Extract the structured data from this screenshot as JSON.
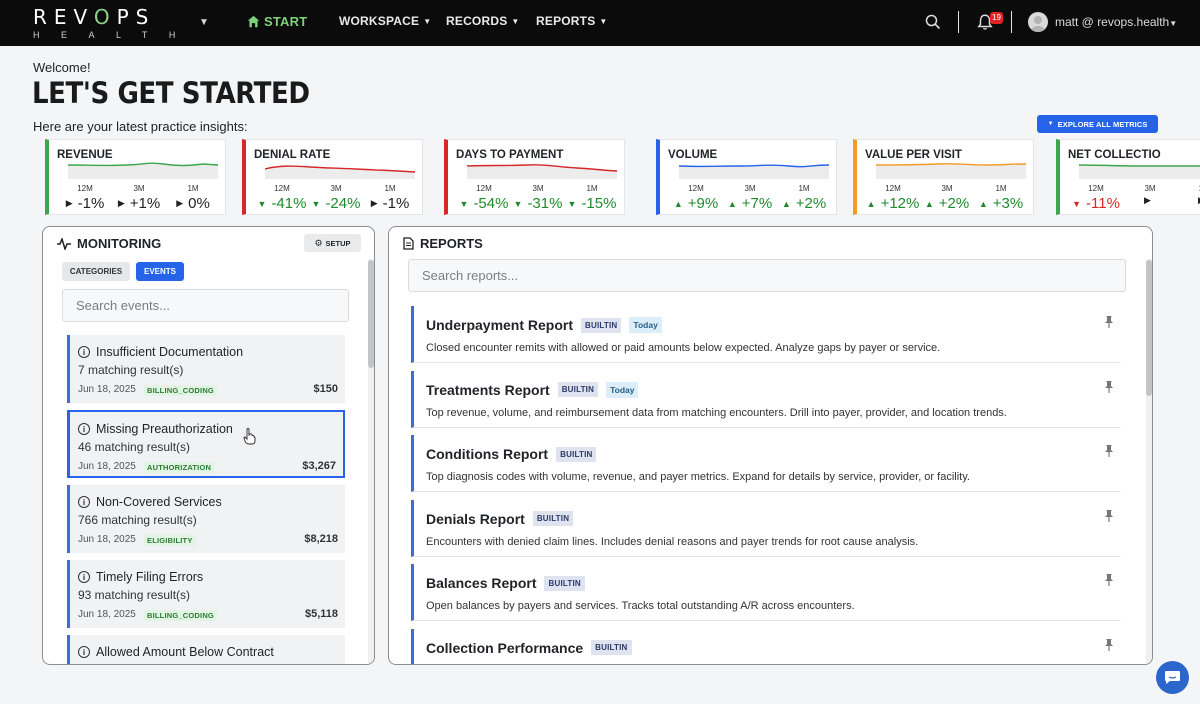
{
  "nav": {
    "logo_top": "REVOPS",
    "logo_bottom": "HEALTH",
    "items": [
      {
        "label": "START"
      },
      {
        "label": "WORKSPACE"
      },
      {
        "label": "RECORDS"
      },
      {
        "label": "REPORTS"
      }
    ],
    "notification_count": "19",
    "user": "matt @ revops.health"
  },
  "header": {
    "welcome": "Welcome!",
    "title": "LET'S GET STARTED",
    "subtitle": "Here are your latest practice insights:",
    "explore_button": "EXPLORE ALL METRICS"
  },
  "metrics": [
    {
      "name": "REVENUE",
      "color": "#3aa84a",
      "periods": [
        {
          "label": "12M",
          "value": "-1%",
          "dir": "flat"
        },
        {
          "label": "3M",
          "value": "+1%",
          "dir": "flat"
        },
        {
          "label": "1M",
          "value": "0%",
          "dir": "flat"
        }
      ]
    },
    {
      "name": "DENIAL RATE",
      "color": "#d62828",
      "periods": [
        {
          "label": "12M",
          "value": "-41%",
          "dir": "down-good"
        },
        {
          "label": "3M",
          "value": "-24%",
          "dir": "down-good"
        },
        {
          "label": "1M",
          "value": "-1%",
          "dir": "flat"
        }
      ]
    },
    {
      "name": "DAYS TO PAYMENT",
      "color": "#d62828",
      "periods": [
        {
          "label": "12M",
          "value": "-54%",
          "dir": "down-good"
        },
        {
          "label": "3M",
          "value": "-31%",
          "dir": "down-good"
        },
        {
          "label": "1M",
          "value": "-15%",
          "dir": "down-good"
        }
      ]
    },
    {
      "name": "VOLUME",
      "color": "#2663e8",
      "periods": [
        {
          "label": "12M",
          "value": "+9%",
          "dir": "up-good"
        },
        {
          "label": "3M",
          "value": "+7%",
          "dir": "up-good"
        },
        {
          "label": "1M",
          "value": "+2%",
          "dir": "up-good"
        }
      ]
    },
    {
      "name": "VALUE PER VISIT",
      "color": "#f29b26",
      "periods": [
        {
          "label": "12M",
          "value": "+12%",
          "dir": "up-good"
        },
        {
          "label": "3M",
          "value": "+2%",
          "dir": "up-good"
        },
        {
          "label": "1M",
          "value": "+3%",
          "dir": "up-good"
        }
      ]
    },
    {
      "name": "NET COLLECTIO",
      "color": "#3aa84a",
      "periods": [
        {
          "label": "12M",
          "value": "-11%",
          "dir": "down-bad"
        },
        {
          "label": "3M",
          "value": "",
          "dir": "flat"
        },
        {
          "label": "1M",
          "value": "",
          "dir": "flat"
        }
      ]
    }
  ],
  "monitoring": {
    "title": "MONITORING",
    "setup": "SETUP",
    "tabs": [
      "CATEGORIES",
      "EVENTS"
    ],
    "search_placeholder": "Search events...",
    "events": [
      {
        "title": "Insufficient Documentation",
        "sub": "7 matching result(s)",
        "date": "Jun 18, 2025",
        "tag": "BILLING_CODING",
        "amount": "$150"
      },
      {
        "title": "Missing Preauthorization",
        "sub": "46 matching result(s)",
        "date": "Jun 18, 2025",
        "tag": "AUTHORIZATION",
        "amount": "$3,267"
      },
      {
        "title": "Non-Covered Services",
        "sub": "766 matching result(s)",
        "date": "Jun 18, 2025",
        "tag": "ELIGIBILITY",
        "amount": "$8,218"
      },
      {
        "title": "Timely Filing Errors",
        "sub": "93 matching result(s)",
        "date": "Jun 18, 2025",
        "tag": "BILLING_CODING",
        "amount": "$5,118"
      },
      {
        "title": "Allowed Amount Below Contract",
        "sub": "",
        "date": "",
        "tag": "",
        "amount": ""
      }
    ]
  },
  "reports": {
    "title": "REPORTS",
    "search_placeholder": "Search reports...",
    "items": [
      {
        "name": "Underpayment Report",
        "badge": "BUILTIN",
        "extra": "Today",
        "desc": "Closed encounter remits with allowed or paid amounts below expected. Analyze gaps by payer or service."
      },
      {
        "name": "Treatments Report",
        "badge": "BUILTIN",
        "extra": "Today",
        "desc": "Top revenue, volume, and reimbursement data from matching encounters. Drill into payer, provider, and location trends."
      },
      {
        "name": "Conditions Report",
        "badge": "BUILTIN",
        "extra": "",
        "desc": "Top diagnosis codes with volume, revenue, and payer metrics. Expand for details by service, provider, or facility."
      },
      {
        "name": "Denials Report",
        "badge": "BUILTIN",
        "extra": "",
        "desc": "Encounters with denied claim lines. Includes denial reasons and payer trends for root cause analysis."
      },
      {
        "name": "Balances Report",
        "badge": "BUILTIN",
        "extra": "",
        "desc": "Open balances by payers and services. Tracks total outstanding A/R across encounters."
      },
      {
        "name": "Collection Performance",
        "badge": "BUILTIN",
        "extra": "",
        "desc": ""
      }
    ]
  }
}
